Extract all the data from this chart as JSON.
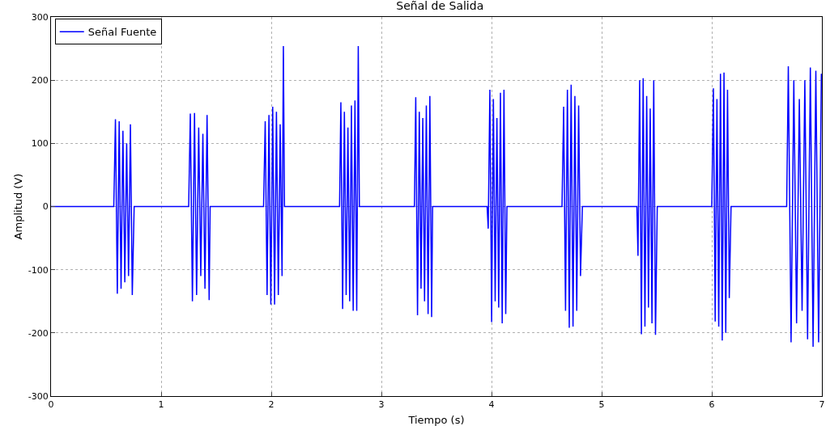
{
  "chart_data": {
    "type": "line",
    "title": "Señal de Salida",
    "xlabel": "Tiempo (s)",
    "ylabel": "Amplitud (V)",
    "xlim": [
      0,
      7
    ],
    "xticks": [
      0,
      1,
      2,
      3,
      4,
      5,
      6,
      7
    ],
    "ylim": [
      -300,
      300
    ],
    "yticks": [
      -300,
      -200,
      -100,
      0,
      100,
      200,
      300
    ],
    "grid": true,
    "legend": "top left",
    "marker": "none",
    "line_style": "solid",
    "series": [
      {
        "name": "Señal Fuente",
        "color": "#0000ff",
        "x": [
          0,
          0.57,
          0.585,
          0.602,
          0.619,
          0.636,
          0.653,
          0.67,
          0.687,
          0.704,
          0.721,
          0.738,
          0.755,
          1.25,
          1.265,
          1.284,
          1.303,
          1.322,
          1.341,
          1.36,
          1.379,
          1.398,
          1.417,
          1.436,
          1.445,
          1.93,
          1.945,
          1.962,
          1.979,
          1.996,
          2.013,
          2.03,
          2.047,
          2.064,
          2.081,
          2.098,
          2.11,
          2.12,
          2.62,
          2.632,
          2.648,
          2.664,
          2.68,
          2.696,
          2.712,
          2.728,
          2.744,
          2.76,
          2.776,
          2.79,
          2.8,
          3.3,
          3.312,
          3.328,
          3.344,
          3.36,
          3.376,
          3.392,
          3.408,
          3.424,
          3.44,
          3.456,
          3.465,
          3.96,
          3.97,
          3.985,
          4.001,
          4.017,
          4.033,
          4.049,
          4.065,
          4.081,
          4.097,
          4.113,
          4.129,
          4.14,
          4.64,
          4.655,
          4.672,
          4.689,
          4.706,
          4.723,
          4.74,
          4.757,
          4.774,
          4.791,
          4.808,
          4.825,
          5.32,
          5.33,
          5.345,
          5.361,
          5.377,
          5.393,
          5.409,
          5.425,
          5.441,
          5.457,
          5.473,
          5.489,
          5.505,
          6.0,
          6.015,
          6.031,
          6.047,
          6.063,
          6.079,
          6.095,
          6.111,
          6.127,
          6.143,
          6.159,
          6.175,
          6.68,
          6.695,
          6.72,
          6.745,
          6.77,
          6.795,
          6.82,
          6.845,
          6.87,
          6.895,
          6.92,
          6.945,
          6.97,
          6.995
        ],
        "values": [
          0,
          0,
          138,
          -138,
          135,
          -130,
          120,
          -120,
          100,
          -110,
          130,
          -140,
          0,
          0,
          147,
          -150,
          148,
          -140,
          125,
          -110,
          115,
          -130,
          145,
          -148,
          0,
          0,
          135,
          -140,
          145,
          -155,
          158,
          -155,
          150,
          -140,
          130,
          -110,
          254,
          0,
          0,
          165,
          -162,
          150,
          -140,
          125,
          -150,
          160,
          -165,
          168,
          -165,
          254,
          0,
          0,
          173,
          -172,
          150,
          -130,
          140,
          -150,
          160,
          -170,
          175,
          -175,
          0,
          0,
          -35,
          185,
          -183,
          170,
          -150,
          140,
          -160,
          180,
          -185,
          185,
          -170,
          0,
          0,
          158,
          -165,
          185,
          -192,
          193,
          -190,
          175,
          -165,
          160,
          -110,
          0,
          0,
          -78,
          200,
          -202,
          203,
          -190,
          175,
          -160,
          155,
          -185,
          200,
          -203,
          0,
          0,
          187,
          -182,
          170,
          -190,
          210,
          -212,
          212,
          -200,
          185,
          -145,
          0,
          0,
          222,
          -215,
          200,
          -185,
          170,
          -165,
          200,
          -210,
          220,
          -222,
          215,
          -215,
          210
        ]
      }
    ]
  }
}
